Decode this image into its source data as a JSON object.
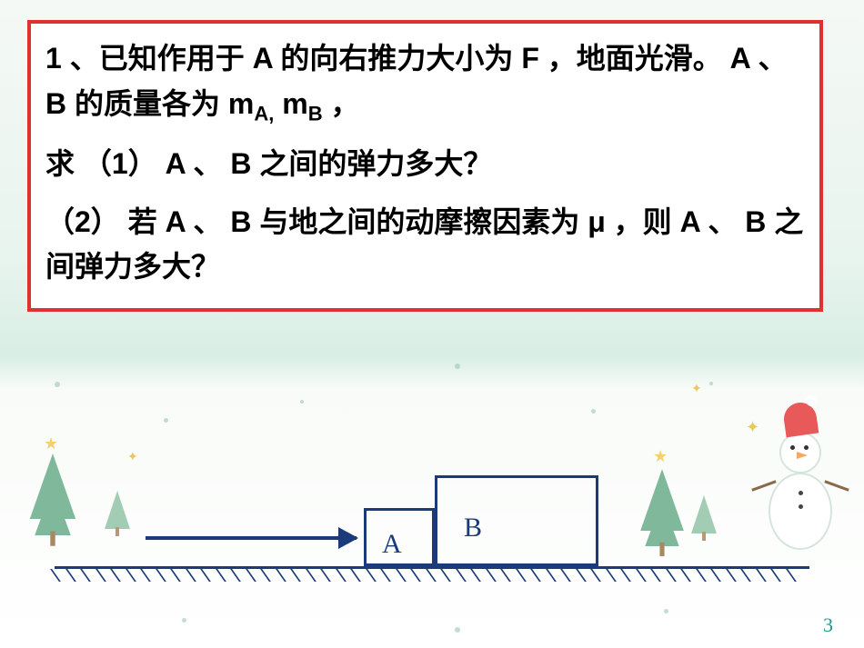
{
  "problem": {
    "line1_prefix": "1 、已知作用于",
    "varA_1": " A ",
    "line1_mid": "的向右推力大小为",
    "varF": " F ",
    "line1_suffix": "，地面光滑。",
    "varA_2": " A ",
    "sep1": "、",
    "varB_1": " B ",
    "mass_text": "的质量各为",
    "mA": " m",
    "subA": "A,",
    "mB": "  m",
    "subB": "B",
    "comma_end": " ，",
    "q1_prefix": "求 （1）",
    "varA_3": " A ",
    "sep2": "、",
    "varB_2": " B ",
    "q1_suffix": "之间的弹力多大？",
    "q2_prefix": "（2） 若",
    "varA_4": " A ",
    "sep3": "、",
    "varB_3": " B ",
    "q2_mid": "与地之间的动摩擦因素为 μ ，则",
    "varA_5": " A ",
    "sep4": "、",
    "varB_4": " B ",
    "q2_suffix": "之间弹力多大？"
  },
  "diagram": {
    "labelA": "A",
    "labelB": "B",
    "ground_color": "#1a3a7a",
    "block_border_color": "#1a3a7a",
    "arrow_color": "#1a3a7a",
    "hatch_count": 50,
    "blockA_w": 78,
    "blockA_h": 64,
    "blockB_w": 180,
    "blockB_h": 100
  },
  "page_number": "3",
  "colors": {
    "problem_border": "#e03030",
    "text": "#000000",
    "page_num": "#1a9a8a",
    "tree": "#7fb89a",
    "star": "#f4d06f",
    "snowman_hat": "#e85a5a"
  }
}
